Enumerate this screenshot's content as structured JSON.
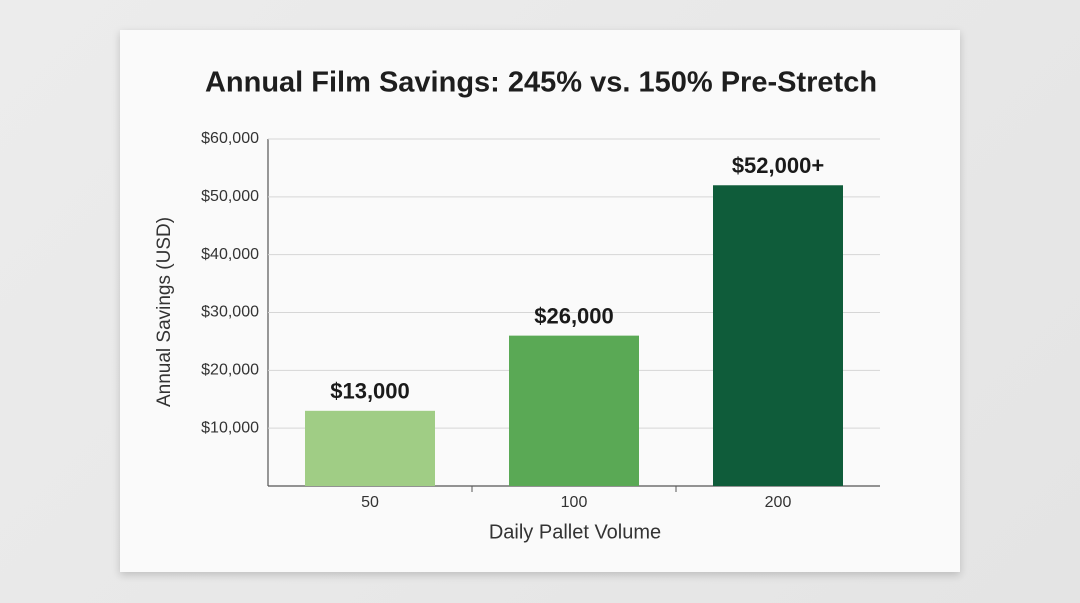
{
  "chart_data": {
    "type": "bar",
    "title": "Annual Film Savings: 245% vs. 150% Pre-Stretch",
    "x_label": "Daily Pallet Volume",
    "y_label": "Annual Savings (USD)",
    "categories": [
      "50",
      "100",
      "200"
    ],
    "values": [
      13000,
      26000,
      52000
    ],
    "value_labels": [
      "$13,000",
      "$26,000",
      "$52,000+"
    ],
    "colors": [
      "#a0cd85",
      "#5aa955",
      "#0f5c3a"
    ],
    "ylim": [
      0,
      60000
    ],
    "yticks": [
      {
        "value": 10000,
        "label": "$10,000"
      },
      {
        "value": 20000,
        "label": "$20,000"
      },
      {
        "value": 30000,
        "label": "$30,000"
      },
      {
        "value": 40000,
        "label": "$40,000"
      },
      {
        "value": 50000,
        "label": "$50,000"
      },
      {
        "value": 60000,
        "label": "$60,000"
      }
    ],
    "grid": true
  }
}
